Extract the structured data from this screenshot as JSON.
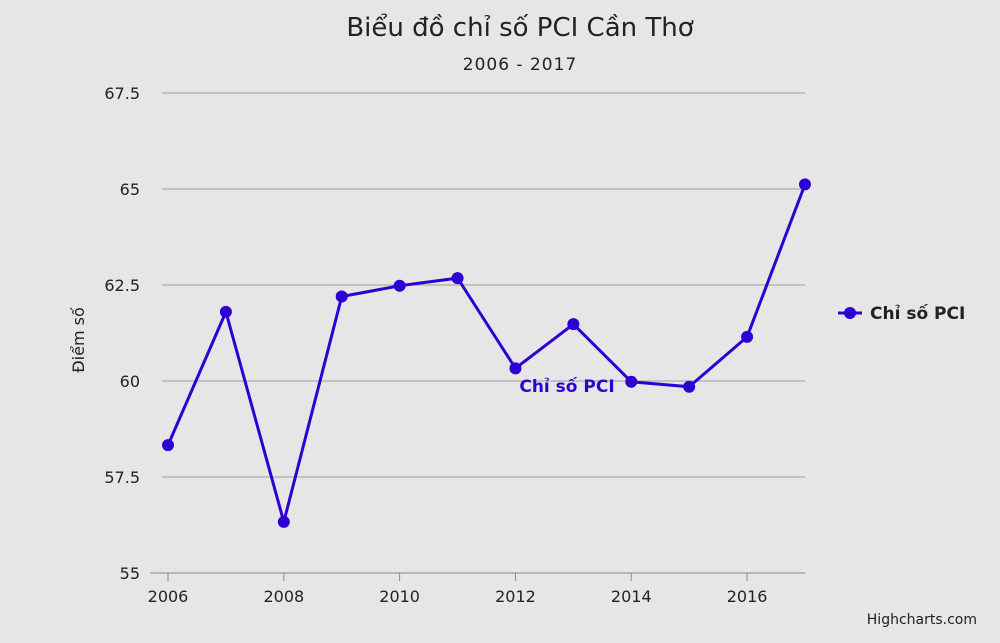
{
  "chart_data": {
    "type": "line",
    "title": "Biểu đồ chỉ số PCI Cần Thơ",
    "subtitle": "2006 - 2017",
    "ylabel": "Điểm số",
    "xlabel": "",
    "ylim": [
      55,
      67.5
    ],
    "yticks": [
      55,
      57.5,
      60,
      62.5,
      65,
      67.5
    ],
    "ytick_labels": [
      "55",
      "57.5",
      "60",
      "62.5",
      "65",
      "67.5"
    ],
    "xlim": [
      2006,
      2017
    ],
    "xticks": [
      2006,
      2008,
      2010,
      2012,
      2014,
      2016
    ],
    "xtick_labels": [
      "2006",
      "2008",
      "2010",
      "2012",
      "2014",
      "2016"
    ],
    "x": [
      2006,
      2007,
      2008,
      2009,
      2010,
      2011,
      2012,
      2013,
      2014,
      2015,
      2016,
      2017
    ],
    "series": [
      {
        "name": "Chỉ số PCI",
        "color": "#2e00d4",
        "values": [
          58.33,
          61.8,
          56.33,
          62.2,
          62.48,
          62.68,
          60.33,
          61.48,
          59.98,
          59.85,
          61.15,
          65.12
        ]
      }
    ],
    "series_label": "Chỉ số PCI",
    "legend": {
      "position": "right",
      "label": "Chỉ số PCI"
    },
    "grid": true,
    "credits": "Highcharts.com"
  }
}
